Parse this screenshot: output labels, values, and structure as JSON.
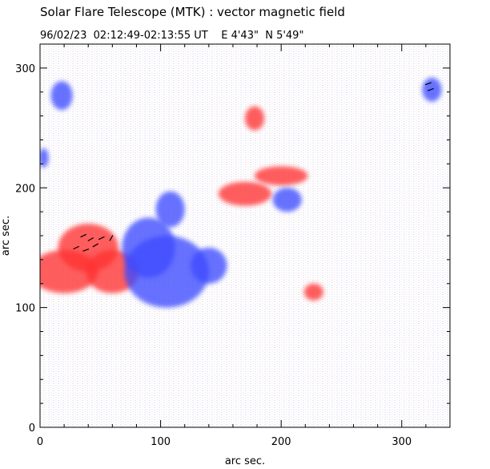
{
  "header": {
    "title": "Solar Flare Telescope (MTK) : vector magnetic field",
    "subtitle": "96/02/23  02:12:49-02:13:55 UT    E 4'43\"  N 5'49\""
  },
  "plot": {
    "xlabel": "arc sec.",
    "ylabel": "arc sec.",
    "xlim": [
      0,
      340
    ],
    "ylim": [
      0,
      320
    ],
    "xticks": [
      "0",
      "100",
      "200",
      "300"
    ],
    "yticks": [
      "0",
      "100",
      "200",
      "300"
    ],
    "colors": {
      "positive_field": "#ff3030",
      "negative_field": "#3c4cff",
      "vector": "#000000",
      "frame": "#000000"
    },
    "regions": [
      {
        "polarity": "positive",
        "x": 40,
        "y": 150,
        "rx": 25,
        "ry": 20
      },
      {
        "polarity": "positive",
        "x": 20,
        "y": 130,
        "rx": 28,
        "ry": 18
      },
      {
        "polarity": "positive",
        "x": 60,
        "y": 130,
        "rx": 22,
        "ry": 18
      },
      {
        "polarity": "positive",
        "x": 170,
        "y": 195,
        "rx": 22,
        "ry": 10
      },
      {
        "polarity": "positive",
        "x": 200,
        "y": 210,
        "rx": 22,
        "ry": 8
      },
      {
        "polarity": "positive",
        "x": 227,
        "y": 113,
        "rx": 8,
        "ry": 7
      },
      {
        "polarity": "positive",
        "x": 178,
        "y": 258,
        "rx": 8,
        "ry": 10
      },
      {
        "polarity": "negative",
        "x": 105,
        "y": 130,
        "rx": 35,
        "ry": 30
      },
      {
        "polarity": "negative",
        "x": 90,
        "y": 150,
        "rx": 22,
        "ry": 25
      },
      {
        "polarity": "negative",
        "x": 140,
        "y": 135,
        "rx": 15,
        "ry": 15
      },
      {
        "polarity": "negative",
        "x": 108,
        "y": 182,
        "rx": 12,
        "ry": 15
      },
      {
        "polarity": "negative",
        "x": 205,
        "y": 190,
        "rx": 12,
        "ry": 10
      },
      {
        "polarity": "negative",
        "x": 325,
        "y": 282,
        "rx": 8,
        "ry": 10
      },
      {
        "polarity": "negative",
        "x": 18,
        "y": 277,
        "rx": 9,
        "ry": 12
      },
      {
        "polarity": "negative",
        "x": 3,
        "y": 225,
        "rx": 4,
        "ry": 8
      }
    ],
    "vectors": [
      {
        "x": 36,
        "y": 160,
        "angle": 25
      },
      {
        "x": 42,
        "y": 157,
        "angle": 30
      },
      {
        "x": 46,
        "y": 152,
        "angle": 30
      },
      {
        "x": 38,
        "y": 148,
        "angle": 20
      },
      {
        "x": 30,
        "y": 150,
        "angle": 25
      },
      {
        "x": 51,
        "y": 158,
        "angle": 25
      },
      {
        "x": 59,
        "y": 158,
        "angle": 60
      },
      {
        "x": 322,
        "y": 287,
        "angle": 20
      },
      {
        "x": 324,
        "y": 282,
        "angle": 20
      }
    ]
  }
}
